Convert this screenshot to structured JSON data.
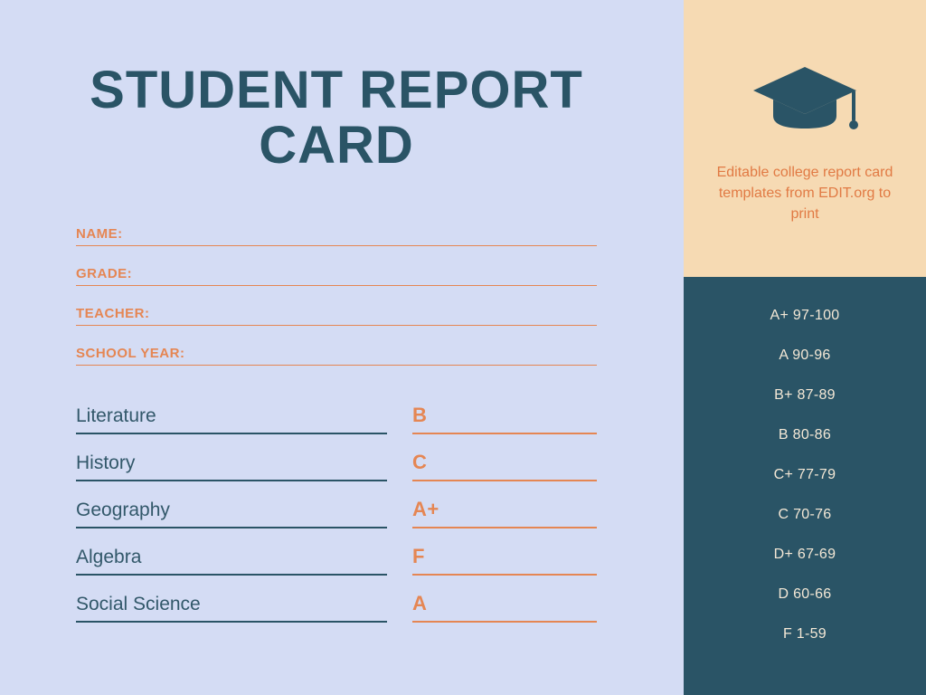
{
  "colors": {
    "page_bg": "#d4dcf4",
    "title": "#2a5466",
    "accent": "#e58653",
    "subject": "#32586a",
    "subject_underline": "#2a5466",
    "grade_underline": "#e58653",
    "info_underline": "#e58653",
    "sidebar_top_bg": "#f6dab3",
    "sidebar_bottom_bg": "#2a5466",
    "sidebar_text_top": "#e17a44",
    "sidebar_text_bottom": "#f4e8d6",
    "cap_color": "#2a5466"
  },
  "title_line1": "STUDENT REPORT",
  "title_line2": "CARD",
  "info_fields": [
    {
      "label": "NAME:"
    },
    {
      "label": "GRADE:"
    },
    {
      "label": "TEACHER:"
    },
    {
      "label": "SCHOOL YEAR:"
    }
  ],
  "grades": [
    {
      "subject": "Literature",
      "grade": "B"
    },
    {
      "subject": "History",
      "grade": "C"
    },
    {
      "subject": "Geography",
      "grade": "A+"
    },
    {
      "subject": "Algebra",
      "grade": "F"
    },
    {
      "subject": "Social Science",
      "grade": "A"
    }
  ],
  "sidebar": {
    "tagline": "Editable college report card templates from EDIT.org to print",
    "scale": [
      "A+ 97-100",
      "A 90-96",
      "B+ 87-89",
      "B 80-86",
      "C+ 77-79",
      "C 70-76",
      "D+ 67-69",
      "D 60-66",
      "F 1-59"
    ]
  }
}
